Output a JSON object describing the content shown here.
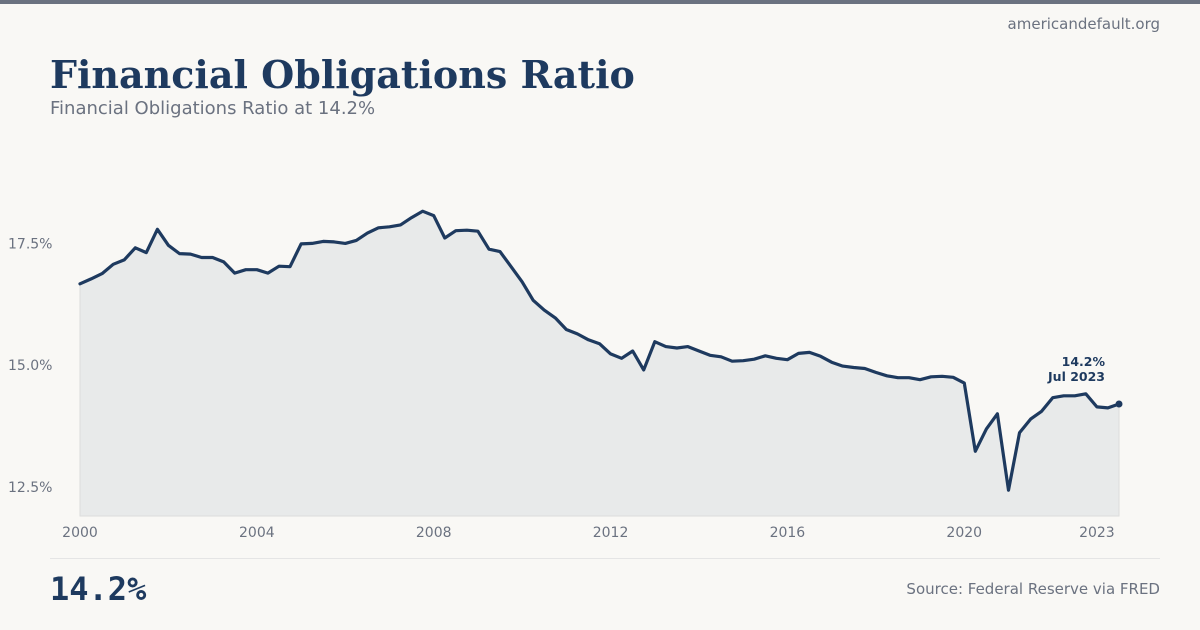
{
  "site": "americandefault.org",
  "title": "Financial Obligations Ratio",
  "subtitle": "Financial Obligations Ratio at 14.2%",
  "headline_value": "14.2%",
  "source": "Source: Federal Reserve via FRED",
  "colors": {
    "line": "#1e3a5f",
    "area": "#e8eaea",
    "axis_text": "#6b7280",
    "background": "#f9f8f5"
  },
  "chart_data": {
    "type": "area",
    "title": "Financial Obligations Ratio",
    "xlabel": "",
    "ylabel": "",
    "xlim": [
      2000.0,
      2023.5
    ],
    "ylim": [
      11.9,
      19.5
    ],
    "yticks": [
      12.5,
      15.0,
      17.5
    ],
    "ytick_labels": [
      "12.5%",
      "15.0%",
      "17.5%"
    ],
    "xticks": [
      2000,
      2004,
      2008,
      2012,
      2016,
      2020,
      2023
    ],
    "xtick_labels": [
      "2000",
      "2004",
      "2008",
      "2012",
      "2016",
      "2020",
      "2023"
    ],
    "grid": false,
    "annotation": {
      "value_label": "14.2%",
      "date_label": "Jul 2023"
    },
    "series": [
      {
        "name": "Financial Obligations Ratio",
        "x": [
          2000.0,
          2000.25,
          2000.5,
          2000.75,
          2001.0,
          2001.25,
          2001.5,
          2001.75,
          2002.0,
          2002.25,
          2002.5,
          2002.75,
          2003.0,
          2003.25,
          2003.5,
          2003.75,
          2004.0,
          2004.25,
          2004.5,
          2004.75,
          2005.0,
          2005.25,
          2005.5,
          2005.75,
          2006.0,
          2006.25,
          2006.5,
          2006.75,
          2007.0,
          2007.25,
          2007.5,
          2007.75,
          2008.0,
          2008.25,
          2008.5,
          2008.75,
          2009.0,
          2009.25,
          2009.5,
          2009.75,
          2010.0,
          2010.25,
          2010.5,
          2010.75,
          2011.0,
          2011.25,
          2011.5,
          2011.75,
          2012.0,
          2012.25,
          2012.5,
          2012.75,
          2013.0,
          2013.25,
          2013.5,
          2013.75,
          2014.0,
          2014.25,
          2014.5,
          2014.75,
          2015.0,
          2015.25,
          2015.5,
          2015.75,
          2016.0,
          2016.25,
          2016.5,
          2016.75,
          2017.0,
          2017.25,
          2017.5,
          2017.75,
          2018.0,
          2018.25,
          2018.5,
          2018.75,
          2019.0,
          2019.25,
          2019.5,
          2019.75,
          2020.0,
          2020.25,
          2020.5,
          2020.75,
          2021.0,
          2021.25,
          2021.5,
          2021.75,
          2022.0,
          2022.25,
          2022.5,
          2022.75,
          2023.0,
          2023.25,
          2023.5
        ],
        "values": [
          16.67,
          16.77,
          16.88,
          17.07,
          17.16,
          17.41,
          17.31,
          17.79,
          17.46,
          17.29,
          17.28,
          17.21,
          17.21,
          17.12,
          16.89,
          16.96,
          16.96,
          16.89,
          17.03,
          17.02,
          17.49,
          17.5,
          17.54,
          17.53,
          17.5,
          17.56,
          17.71,
          17.82,
          17.84,
          17.88,
          18.03,
          18.16,
          18.07,
          17.61,
          17.76,
          17.77,
          17.75,
          17.38,
          17.33,
          17.02,
          16.71,
          16.33,
          16.13,
          15.97,
          15.73,
          15.64,
          15.52,
          15.44,
          15.23,
          15.14,
          15.29,
          14.9,
          15.48,
          15.38,
          15.35,
          15.38,
          15.29,
          15.2,
          15.17,
          15.08,
          15.09,
          15.12,
          15.19,
          15.14,
          15.11,
          15.24,
          15.26,
          15.18,
          15.06,
          14.98,
          14.95,
          14.93,
          14.85,
          14.78,
          14.74,
          14.74,
          14.7,
          14.76,
          14.77,
          14.75,
          14.63,
          13.23,
          13.69,
          14.0,
          12.43,
          13.61,
          13.89,
          14.05,
          14.33,
          14.37,
          14.37,
          14.41,
          14.14,
          14.12,
          14.2
        ]
      }
    ]
  }
}
